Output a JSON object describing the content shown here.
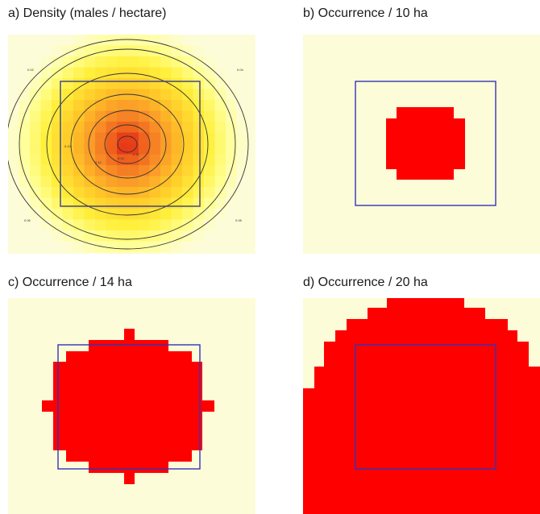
{
  "panels": [
    {
      "id": "a",
      "title": "a) Density (males / hectare)",
      "contour_labels": [
        "0.02",
        "0.04",
        "0.06",
        "0.08",
        "0.10",
        "0.12",
        "0.14",
        "0.16",
        "0.18",
        "0.20"
      ]
    },
    {
      "id": "b",
      "title": "b) Occurrence / 10 ha"
    },
    {
      "id": "c",
      "title": "c) Occurrence / 14 ha"
    },
    {
      "id": "d",
      "title": "d) Occurrence / 20 ha"
    }
  ],
  "colors": {
    "background": "#fdfcd8",
    "occurrence": "#ff0000",
    "box": "#3333bb",
    "contour": "#333333"
  }
}
